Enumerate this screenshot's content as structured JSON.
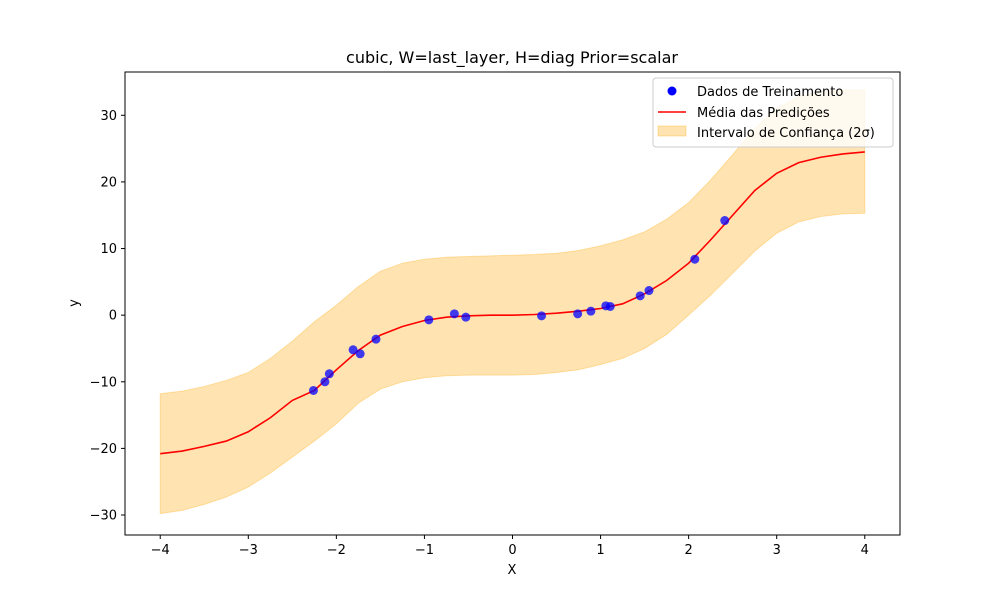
{
  "chart_data": {
    "type": "scatter",
    "title": "cubic, W=last_layer, H=diag Prior=scalar",
    "xlabel": "X",
    "ylabel": "y",
    "xlim": [
      -4.4,
      4.4
    ],
    "ylim": [
      -33,
      36.5
    ],
    "xticks": [
      -4,
      -3,
      -2,
      -1,
      0,
      1,
      2,
      3,
      4
    ],
    "xtick_labels": [
      "−4",
      "−3",
      "−2",
      "−1",
      "0",
      "1",
      "2",
      "3",
      "4"
    ],
    "yticks": [
      -30,
      -20,
      -10,
      0,
      10,
      20,
      30
    ],
    "ytick_labels": [
      "−30",
      "−20",
      "−10",
      "0",
      "10",
      "20",
      "30"
    ],
    "grid": false,
    "legend_position": "top-right",
    "series": [
      {
        "name": "Dados de Treinamento",
        "kind": "scatter",
        "color": "#0000ff",
        "x": [
          -2.26,
          -2.13,
          -2.08,
          -1.81,
          -1.73,
          -1.55,
          -0.95,
          -0.66,
          -0.53,
          0.33,
          0.74,
          0.89,
          1.06,
          1.11,
          1.45,
          1.55,
          2.07,
          2.41
        ],
        "y": [
          -11.3,
          -10.0,
          -8.8,
          -5.2,
          -5.8,
          -3.6,
          -0.7,
          0.2,
          -0.3,
          -0.1,
          0.2,
          0.6,
          1.4,
          1.3,
          2.9,
          3.7,
          8.4,
          14.2
        ]
      },
      {
        "name": "Média das Predições",
        "kind": "line",
        "color": "#ff0000",
        "x": [
          -4.0,
          -3.75,
          -3.5,
          -3.25,
          -3.0,
          -2.75,
          -2.5,
          -2.25,
          -2.0,
          -1.75,
          -1.5,
          -1.25,
          -1.0,
          -0.75,
          -0.5,
          -0.25,
          0.0,
          0.25,
          0.5,
          0.75,
          1.0,
          1.25,
          1.5,
          1.75,
          2.0,
          2.25,
          2.5,
          2.75,
          3.0,
          3.25,
          3.5,
          3.75,
          4.0
        ],
        "y": [
          -20.8,
          -20.4,
          -19.7,
          -18.9,
          -17.5,
          -15.4,
          -12.8,
          -11.3,
          -8.2,
          -5.3,
          -3.0,
          -1.7,
          -0.8,
          -0.3,
          -0.1,
          0.0,
          0.0,
          0.1,
          0.3,
          0.6,
          1.0,
          1.7,
          3.2,
          5.2,
          7.8,
          11.3,
          15.0,
          18.7,
          21.3,
          22.9,
          23.7,
          24.2,
          24.5
        ]
      },
      {
        "name": "Intervalo de Confiança (2σ)",
        "kind": "band",
        "color": "#ffa500",
        "x": [
          -4.0,
          -3.75,
          -3.5,
          -3.25,
          -3.0,
          -2.75,
          -2.5,
          -2.25,
          -2.0,
          -1.75,
          -1.5,
          -1.25,
          -1.0,
          -0.75,
          -0.5,
          -0.25,
          0.0,
          0.25,
          0.5,
          0.75,
          1.0,
          1.25,
          1.5,
          1.75,
          2.0,
          2.25,
          2.5,
          2.75,
          3.0,
          3.25,
          3.5,
          3.75,
          4.0
        ],
        "lower": [
          -29.8,
          -29.3,
          -28.4,
          -27.3,
          -25.8,
          -23.7,
          -21.3,
          -18.9,
          -16.3,
          -13.2,
          -11.1,
          -10.0,
          -9.4,
          -9.1,
          -9.0,
          -9.0,
          -9.0,
          -8.9,
          -8.6,
          -8.2,
          -7.4,
          -6.5,
          -5.0,
          -2.9,
          0.0,
          3.0,
          6.3,
          9.6,
          12.3,
          14.0,
          14.8,
          15.2,
          15.3
        ]
      }
    ],
    "band_upper": [
      -11.8,
      -11.4,
      -10.7,
      -9.8,
      -8.6,
      -6.5,
      -3.9,
      -1.0,
      1.5,
      4.3,
      6.6,
      7.8,
      8.4,
      8.7,
      8.8,
      8.9,
      9.0,
      9.1,
      9.3,
      9.7,
      10.4,
      11.3,
      12.5,
      14.4,
      16.9,
      20.3,
      24.1,
      28.0,
      31.0,
      32.8,
      33.6,
      33.8,
      33.8
    ]
  }
}
